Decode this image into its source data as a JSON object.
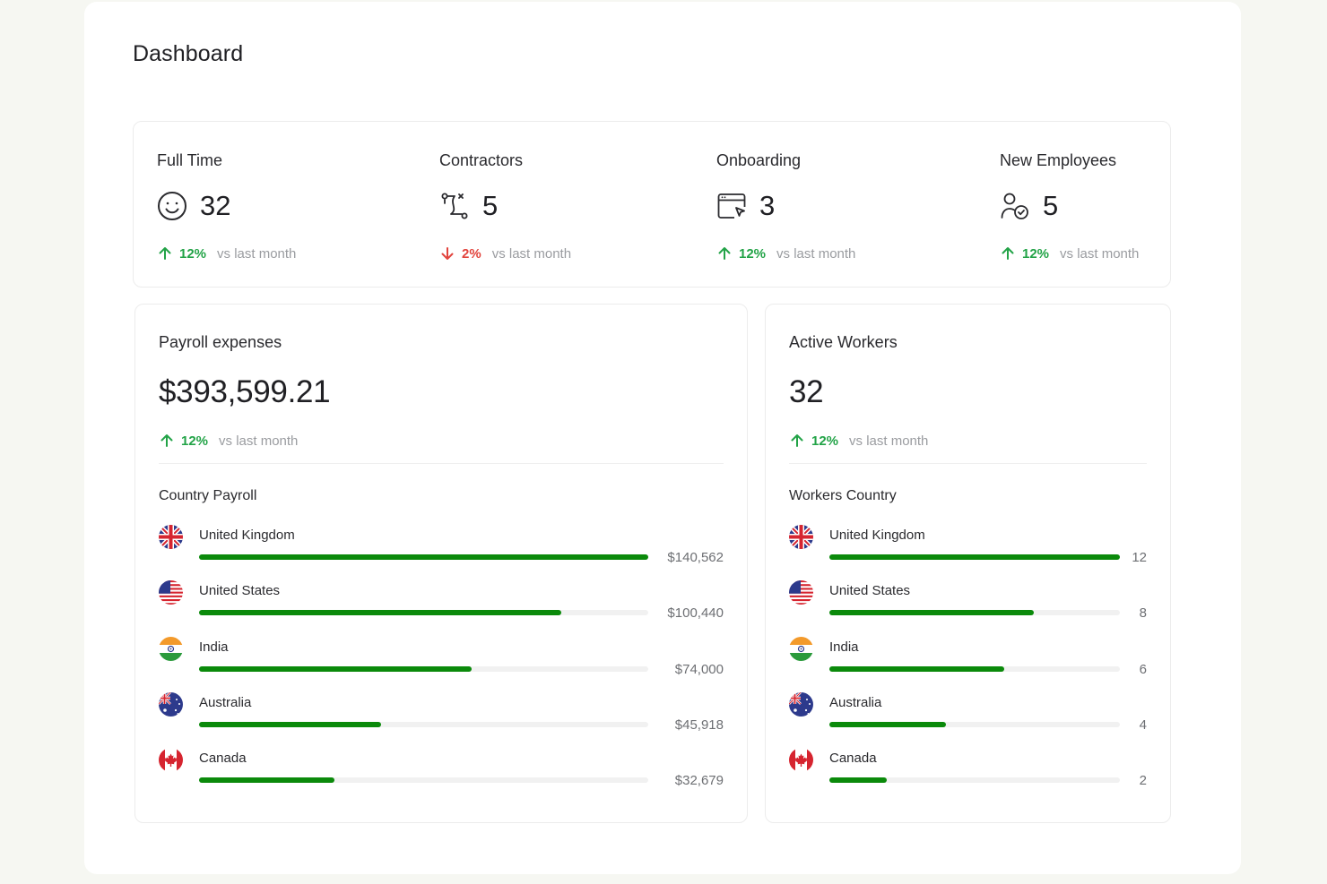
{
  "page": {
    "title": "Dashboard"
  },
  "stats": [
    {
      "label": "Full Time",
      "value": "32",
      "icon": "smile-icon",
      "trend": {
        "direction": "up",
        "pct": "12%",
        "text": "vs last month"
      }
    },
    {
      "label": "Contractors",
      "value": "5",
      "icon": "route-icon",
      "trend": {
        "direction": "down",
        "pct": "2%",
        "text": "vs last month"
      }
    },
    {
      "label": "Onboarding",
      "value": "3",
      "icon": "browser-cursor-icon",
      "trend": {
        "direction": "up",
        "pct": "12%",
        "text": "vs last month"
      }
    },
    {
      "label": "New Employees",
      "value": "5",
      "icon": "user-check-icon",
      "trend": {
        "direction": "up",
        "pct": "12%",
        "text": "vs last month"
      }
    }
  ],
  "payroll": {
    "title": "Payroll expenses",
    "value": "$393,599.21",
    "trend": {
      "direction": "up",
      "pct": "12%",
      "text": "vs last month"
    },
    "list_title": "Country Payroll",
    "rows": [
      {
        "country": "United Kingdom",
        "amount": "$140,562",
        "fraction": 1.0,
        "flag": "uk-flag-icon"
      },
      {
        "country": "United States",
        "amount": "$100,440",
        "fraction": 0.806,
        "flag": "us-flag-icon"
      },
      {
        "country": "India",
        "amount": "$74,000",
        "fraction": 0.607,
        "flag": "india-flag-icon"
      },
      {
        "country": "Australia",
        "amount": "$45,918",
        "fraction": 0.405,
        "flag": "australia-flag-icon"
      },
      {
        "country": "Canada",
        "amount": "$32,679",
        "fraction": 0.302,
        "flag": "canada-flag-icon"
      }
    ]
  },
  "workers": {
    "title": "Active Workers",
    "value": "32",
    "trend": {
      "direction": "up",
      "pct": "12%",
      "text": "vs last month"
    },
    "list_title": "Workers Country",
    "rows": [
      {
        "country": "United Kingdom",
        "amount": "12",
        "fraction": 1.0,
        "flag": "uk-flag-icon"
      },
      {
        "country": "United States",
        "amount": "8",
        "fraction": 0.705,
        "flag": "us-flag-icon"
      },
      {
        "country": "India",
        "amount": "6",
        "fraction": 0.602,
        "flag": "india-flag-icon"
      },
      {
        "country": "Australia",
        "amount": "4",
        "fraction": 0.401,
        "flag": "australia-flag-icon"
      },
      {
        "country": "Canada",
        "amount": "2",
        "fraction": 0.199,
        "flag": "canada-flag-icon"
      }
    ]
  },
  "colors": {
    "bar": "#0b8a0b",
    "up": "#22a347",
    "down": "#e2443d"
  }
}
